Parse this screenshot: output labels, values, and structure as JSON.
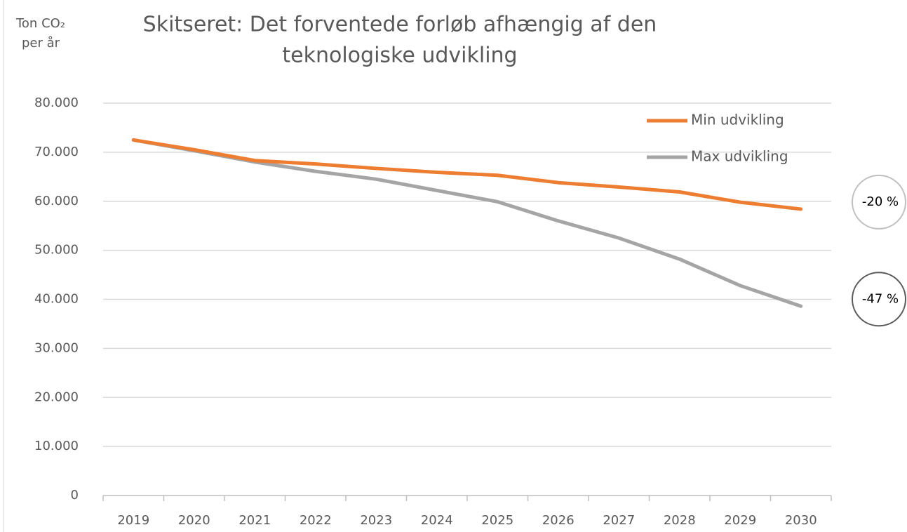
{
  "chart_data": {
    "type": "line",
    "title": [
      "Skitseret: Det forventede forløb afhængig af den",
      "teknologiske udvikling"
    ],
    "ylabel": [
      "Ton CO₂",
      "per år"
    ],
    "categories": [
      "2019",
      "2020",
      "2021",
      "2022",
      "2023",
      "2024",
      "2025",
      "2026",
      "2027",
      "2028",
      "2029",
      "2030"
    ],
    "series": [
      {
        "name": "Min udvikling",
        "color": "#ed7d31",
        "values": [
          72500,
          70500,
          68300,
          67600,
          66700,
          65900,
          65300,
          63800,
          62900,
          61900,
          59800,
          58400
        ]
      },
      {
        "name": "Max udvikling",
        "color": "#a5a5a5",
        "values": [
          72500,
          70300,
          68000,
          66100,
          64500,
          62200,
          59900,
          56000,
          52500,
          48200,
          42800,
          38600
        ]
      }
    ],
    "annotations": [
      "-20 %",
      "-47 %"
    ],
    "ylim": [
      0,
      80000
    ],
    "yticks": [
      0,
      {
        "value": 10000,
        "label": "10.000"
      },
      {
        "value": 20000,
        "label": "20.000"
      },
      {
        "value": 30000,
        "label": "30.000"
      },
      {
        "value": 40000,
        "label": "40.000"
      },
      {
        "value": 50000,
        "label": "50.000"
      },
      {
        "value": 60000,
        "label": "60.000"
      },
      {
        "value": 70000,
        "label": "70.000"
      },
      {
        "value": 80000,
        "label": "80.000"
      }
    ],
    "grid": true,
    "legend": "top-right"
  }
}
